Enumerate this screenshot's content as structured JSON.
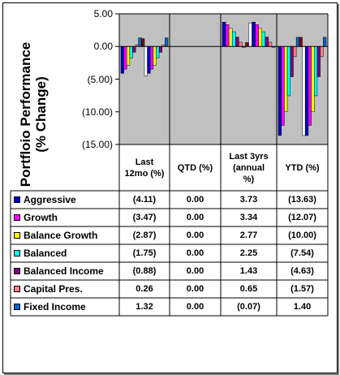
{
  "chart_data": {
    "type": "bar",
    "ylabel": "Portfloio Performance\n(% Change)",
    "ylim": [
      -15,
      5
    ],
    "yticks": [
      "5.00",
      "0.00",
      "(5.00)",
      "(10.00)",
      "(15.00)"
    ],
    "categories": [
      "Last 12mo (%)",
      "QTD (%)",
      "Last 3yrs (annual %)",
      "YTD (%)"
    ],
    "category_headers": [
      [
        "Last",
        "12mo (%)"
      ],
      [
        "QTD (%)"
      ],
      [
        "Last 3yrs",
        "(annual",
        "%)"
      ],
      [
        "YTD (%)"
      ]
    ],
    "series": [
      {
        "name": "Aggressive",
        "color": "#0000cc",
        "values": [
          -4.11,
          0.0,
          3.73,
          -13.63
        ],
        "labels": [
          "(4.11)",
          "0.00",
          "3.73",
          "(13.63)"
        ]
      },
      {
        "name": "Growth",
        "color": "#ff00ff",
        "values": [
          -3.47,
          0.0,
          3.34,
          -12.07
        ],
        "labels": [
          "(3.47)",
          "0.00",
          "3.34",
          "(12.07)"
        ]
      },
      {
        "name": "Balance Growth",
        "color": "#ffff00",
        "values": [
          -2.87,
          0.0,
          2.77,
          -10.0
        ],
        "labels": [
          "(2.87)",
          "0.00",
          "2.77",
          "(10.00)"
        ]
      },
      {
        "name": "Balanced",
        "color": "#00ffff",
        "values": [
          -1.75,
          0.0,
          2.25,
          -7.54
        ],
        "labels": [
          "(1.75)",
          "0.00",
          "2.25",
          "(7.54)"
        ]
      },
      {
        "name": "Balanced Income",
        "color": "#800080",
        "values": [
          -0.88,
          0.0,
          1.43,
          -4.63
        ],
        "labels": [
          "(0.88)",
          "0.00",
          "1.43",
          "(4.63)"
        ]
      },
      {
        "name": "Capital Pres.",
        "color": "#ff8080",
        "values": [
          0.26,
          0.0,
          0.65,
          -1.57
        ],
        "labels": [
          "0.26",
          "0.00",
          "0.65",
          "(1.57)"
        ]
      },
      {
        "name": "Fixed Income",
        "color": "#0066cc",
        "values": [
          1.32,
          0.0,
          -0.07,
          1.4
        ],
        "labels": [
          "1.32",
          "0.00",
          "(0.07)",
          "1.40"
        ]
      }
    ],
    "extra_bars": {
      "note": "additional bars drawn in the plot without data labels",
      "colors": [
        "#ffffff",
        "#800000"
      ],
      "values": [
        [
          -4.5,
          1.2
        ],
        [
          0.0,
          0.0
        ],
        [
          3.6,
          0.6
        ],
        [
          -13.63,
          1.4
        ]
      ]
    },
    "plot_bg": "#c0c0c0",
    "grid": false,
    "legend": "table below chart"
  }
}
